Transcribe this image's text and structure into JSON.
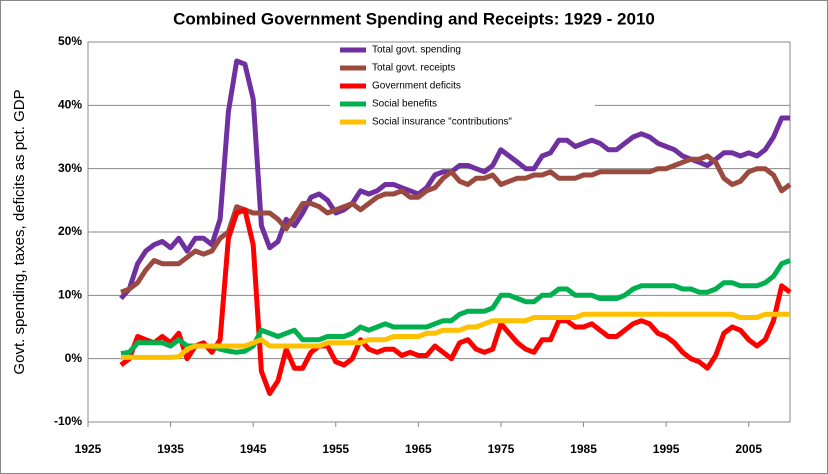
{
  "chart_data": {
    "type": "line",
    "title": "Combined Government Spending and Receipts: 1929 - 2010",
    "y_label": "Govt. spending, taxes, deficits as pct. GDP",
    "x": [
      1929,
      1930,
      1931,
      1932,
      1933,
      1934,
      1935,
      1936,
      1937,
      1938,
      1939,
      1940,
      1941,
      1942,
      1943,
      1944,
      1945,
      1946,
      1947,
      1948,
      1949,
      1950,
      1951,
      1952,
      1953,
      1954,
      1955,
      1956,
      1957,
      1958,
      1959,
      1960,
      1961,
      1962,
      1963,
      1964,
      1965,
      1966,
      1967,
      1968,
      1969,
      1970,
      1971,
      1972,
      1973,
      1974,
      1975,
      1976,
      1977,
      1978,
      1979,
      1980,
      1981,
      1982,
      1983,
      1984,
      1985,
      1986,
      1987,
      1988,
      1989,
      1990,
      1991,
      1992,
      1993,
      1994,
      1995,
      1996,
      1997,
      1998,
      1999,
      2000,
      2001,
      2002,
      2003,
      2004,
      2005,
      2006,
      2007,
      2008,
      2009,
      2010
    ],
    "series": [
      {
        "name": "Total govt. spending",
        "color": "#7030a0",
        "values": [
          9.5,
          11,
          15,
          17,
          18,
          18.5,
          17.5,
          19,
          17,
          19,
          19,
          18,
          22,
          39,
          47,
          46.5,
          41,
          21,
          17.5,
          18.5,
          22,
          21,
          23,
          25.5,
          26,
          25,
          23,
          23.5,
          24.5,
          26.5,
          26,
          26.5,
          27.5,
          27.5,
          27,
          26.5,
          26,
          27,
          29,
          29.5,
          29.5,
          30.5,
          30.5,
          30,
          29.5,
          30.5,
          33,
          32,
          31,
          30,
          30,
          32,
          32.5,
          34.5,
          34.5,
          33.5,
          34,
          34.5,
          34,
          33,
          33,
          34,
          35,
          35.5,
          35,
          34,
          33.5,
          33,
          32,
          31.5,
          31,
          30.5,
          31.5,
          32.5,
          32.5,
          32,
          32.5,
          32,
          33,
          35,
          38,
          38
        ]
      },
      {
        "name": "Total govt. receipts",
        "color": "#9b4a3f",
        "values": [
          10.5,
          11,
          12,
          14,
          15.5,
          15,
          15,
          15,
          16,
          17,
          16.5,
          17,
          19,
          20,
          24,
          23.5,
          23,
          23,
          23,
          22,
          20.5,
          22.5,
          24.5,
          24.5,
          24,
          23,
          23.5,
          24,
          24.5,
          23.5,
          24.5,
          25.5,
          26,
          26,
          26.5,
          25.5,
          25.5,
          26.5,
          27,
          28.5,
          29.5,
          28,
          27.5,
          28.5,
          28.5,
          29,
          27.5,
          28,
          28.5,
          28.5,
          29,
          29,
          29.5,
          28.5,
          28.5,
          28.5,
          29,
          29,
          29.5,
          29.5,
          29.5,
          29.5,
          29.5,
          29.5,
          29.5,
          30,
          30,
          30.5,
          31,
          31.5,
          31.5,
          32,
          31,
          28.5,
          27.5,
          28,
          29.5,
          30,
          30,
          29,
          26.5,
          27.5
        ]
      },
      {
        "name": "Government deficits",
        "color": "#ff0000",
        "values": [
          -1,
          0,
          3.5,
          3,
          2.5,
          3.5,
          2.5,
          4,
          0,
          2,
          2.5,
          1,
          3,
          19,
          23,
          23.5,
          18,
          -2,
          -5.5,
          -3.5,
          1.5,
          -1.5,
          -1.5,
          1,
          2,
          2,
          -0.5,
          -1,
          0,
          3,
          1.5,
          1,
          1.5,
          1.5,
          0.5,
          1,
          0.5,
          0.5,
          2,
          1,
          0,
          2.5,
          3,
          1.5,
          1,
          1.5,
          5.5,
          4,
          2.5,
          1.5,
          1,
          3,
          3,
          6,
          6,
          5,
          5,
          5.5,
          4.5,
          3.5,
          3.5,
          4.5,
          5.5,
          6,
          5.5,
          4,
          3.5,
          2.5,
          1,
          0,
          -0.5,
          -1.5,
          0.5,
          4,
          5,
          4.5,
          3,
          2,
          3,
          6,
          11.5,
          10.5
        ]
      },
      {
        "name": "Social benefits",
        "color": "#00b050",
        "values": [
          0.8,
          1,
          2.5,
          2.5,
          2.5,
          2.5,
          2,
          3,
          2,
          2,
          2,
          2,
          1.5,
          1.2,
          1,
          1.2,
          2,
          4.5,
          4,
          3.5,
          4,
          4.5,
          3,
          3,
          3,
          3.5,
          3.5,
          3.5,
          4,
          5,
          4.5,
          5,
          5.5,
          5,
          5,
          5,
          5,
          5,
          5.5,
          6,
          6,
          7,
          7.5,
          7.5,
          7.5,
          8,
          10,
          10,
          9.5,
          9,
          9,
          10,
          10,
          11,
          11,
          10,
          10,
          10,
          9.5,
          9.5,
          9.5,
          10,
          11,
          11.5,
          11.5,
          11.5,
          11.5,
          11.5,
          11,
          11,
          10.5,
          10.5,
          11,
          12,
          12,
          11.5,
          11.5,
          11.5,
          12,
          13,
          15,
          15.5
        ]
      },
      {
        "name": "Social insurance \"contributions\"",
        "color": "#ffc000",
        "values": [
          0.2,
          0.2,
          0.2,
          0.2,
          0.2,
          0.2,
          0.2,
          0.3,
          1.5,
          2,
          2,
          2,
          2,
          2,
          2,
          2,
          2.5,
          3,
          2,
          2,
          2,
          2,
          2,
          2,
          2,
          2.5,
          2.5,
          2.5,
          2.5,
          2.5,
          3,
          3,
          3,
          3.5,
          3.5,
          3.5,
          3.5,
          4,
          4,
          4.5,
          4.5,
          4.5,
          5,
          5,
          5.5,
          6,
          6,
          6,
          6,
          6,
          6.5,
          6.5,
          6.5,
          6.5,
          6.5,
          6.5,
          7,
          7,
          7,
          7,
          7,
          7,
          7,
          7,
          7,
          7,
          7,
          7,
          7,
          7,
          7,
          7,
          7,
          7,
          7,
          6.5,
          6.5,
          6.5,
          7,
          7,
          7,
          7
        ]
      }
    ],
    "xlim": [
      1925,
      2010
    ],
    "xticks": [
      1925,
      1935,
      1945,
      1955,
      1965,
      1975,
      1985,
      1995,
      2005
    ],
    "ylim": [
      -10,
      50
    ],
    "yticks": [
      {
        "value": -10,
        "label": "-10%"
      },
      {
        "value": 0,
        "label": "0%"
      },
      {
        "value": 10,
        "label": "10%"
      },
      {
        "value": 20,
        "label": "20%"
      },
      {
        "value": 30,
        "label": "30%"
      },
      {
        "value": 40,
        "label": "40%"
      },
      {
        "value": 50,
        "label": "50%"
      }
    ],
    "grid": true
  }
}
